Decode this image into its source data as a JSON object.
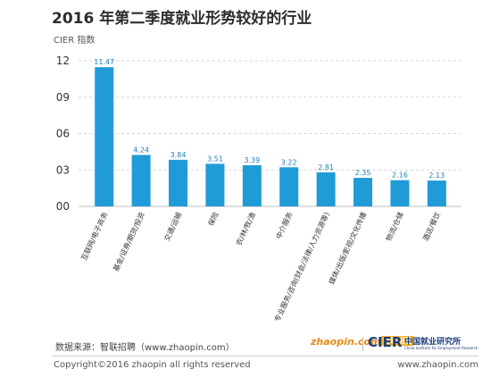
{
  "page": {
    "title": "2016 年第二季度就业形势较好的行业",
    "source": "数据来源：智联招聘（www.zhaopin.com）",
    "copyright": "Copyright©2016 zhaopin all rights reserved",
    "website": "www.zhaopin.com"
  },
  "logos": {
    "zhaopin": "zhaopin.com",
    "zhaopin_badge": "智联招聘",
    "cier": "CIER",
    "cier_cn": "中国就业研究所",
    "cier_en": "China Institute for Employment Research"
  },
  "colors": {
    "bar": "#1f9bd7",
    "value_label": "#1f7fb8",
    "grid": "#c9c9c9"
  },
  "chart_data": {
    "type": "bar",
    "title": "2016 年第二季度就业形势较好的行业",
    "ylabel": "CIER 指数",
    "xlabel": "",
    "ylim": [
      0,
      12
    ],
    "yticks": [
      "00",
      "03",
      "06",
      "09",
      "12"
    ],
    "ytick_values": [
      0,
      3,
      6,
      9,
      12
    ],
    "grid": true,
    "categories": [
      "互联网/电子商务",
      "基金/证券/期货/投资",
      "交通/运输",
      "保险",
      "农/林/牧/渔",
      "中介服务",
      "专业服务/咨询(财会/法律/人力资源等)",
      "媒体/出版/影视/文化传播",
      "物流/仓储",
      "酒店/餐饮"
    ],
    "values": [
      11.47,
      4.24,
      3.84,
      3.51,
      3.39,
      3.22,
      2.81,
      2.35,
      2.16,
      2.13
    ],
    "value_labels": [
      "11.47",
      "4.24",
      "3.84",
      "3.51",
      "3.39",
      "3.22",
      "2.81",
      "2.35",
      "2.16",
      "2.13"
    ]
  }
}
